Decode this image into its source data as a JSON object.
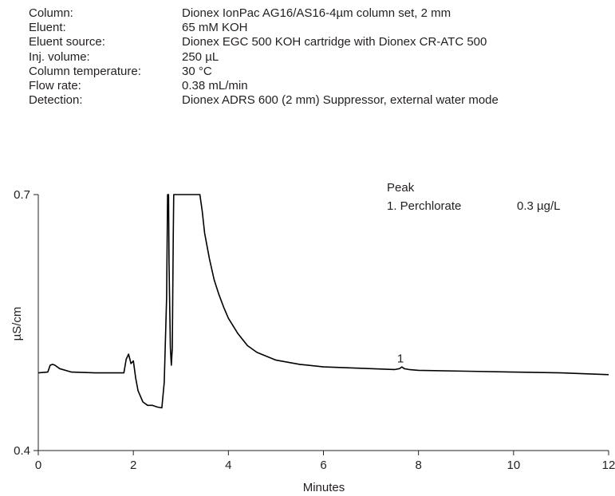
{
  "conditions": [
    {
      "label": "Column:",
      "value": "Dionex IonPac AG16/AS16-4µm column set, 2 mm"
    },
    {
      "label": "Eluent:",
      "value": "65 mM KOH"
    },
    {
      "label": "Eluent source:",
      "value": "Dionex EGC 500 KOH cartridge with Dionex CR-ATC 500"
    },
    {
      "label": "Inj. volume:",
      "value": "250 µL"
    },
    {
      "label": "Column temperature:",
      "value": "30 °C"
    },
    {
      "label": "Flow rate:",
      "value": "0.38 mL/min"
    },
    {
      "label": "Detection:",
      "value": "Dionex ADRS 600 (2 mm) Suppressor, external water mode"
    }
  ],
  "chart_data": {
    "type": "line",
    "xlabel": "Minutes",
    "ylabel": "µS/cm",
    "xlim": [
      0,
      12
    ],
    "ylim": [
      0.4,
      0.7
    ],
    "x_ticks": [
      "0",
      "2",
      "4",
      "6",
      "8",
      "10",
      "12"
    ],
    "y_ticks": [
      "0.4",
      "0.7"
    ],
    "grid": false,
    "legend": {
      "header": "Peak",
      "entries": [
        {
          "label": "1. Perchlorate",
          "value": "0.3 µg/L"
        }
      ]
    },
    "peak_labels": [
      {
        "label": "1",
        "x": 7.62,
        "y": 0.4985
      }
    ],
    "series": [
      {
        "x": [
          0,
          0.2,
          0.25,
          0.3,
          0.35,
          0.45,
          0.7,
          1.2,
          1.8,
          1.85,
          1.9,
          1.95,
          2.0,
          2.05,
          2.1,
          2.2,
          2.3,
          2.4,
          2.5,
          2.6,
          2.65,
          2.7,
          2.72,
          2.74,
          2.75,
          2.78,
          2.8,
          2.82,
          2.84,
          2.85,
          2.87,
          2.9,
          3.0,
          3.4,
          3.45,
          3.5,
          3.6,
          3.7,
          3.8,
          3.9,
          4.0,
          4.2,
          4.4,
          4.6,
          5.0,
          5.5,
          6.0,
          6.5,
          7.0,
          7.5,
          7.6,
          7.65,
          7.7,
          7.8,
          8.0,
          9.0,
          10.0,
          11.0,
          12.0
        ],
        "y": [
          0.491,
          0.492,
          0.5,
          0.501,
          0.5,
          0.496,
          0.492,
          0.491,
          0.491,
          0.507,
          0.513,
          0.502,
          0.505,
          0.485,
          0.47,
          0.457,
          0.453,
          0.453,
          0.451,
          0.45,
          0.48,
          0.58,
          0.7,
          0.7,
          0.62,
          0.52,
          0.5,
          0.52,
          0.65,
          0.7,
          0.7,
          0.7,
          0.7,
          0.7,
          0.68,
          0.655,
          0.625,
          0.6,
          0.583,
          0.568,
          0.555,
          0.537,
          0.523,
          0.515,
          0.506,
          0.501,
          0.498,
          0.497,
          0.496,
          0.495,
          0.496,
          0.498,
          0.496,
          0.495,
          0.494,
          0.493,
          0.492,
          0.491,
          0.489
        ]
      }
    ]
  }
}
